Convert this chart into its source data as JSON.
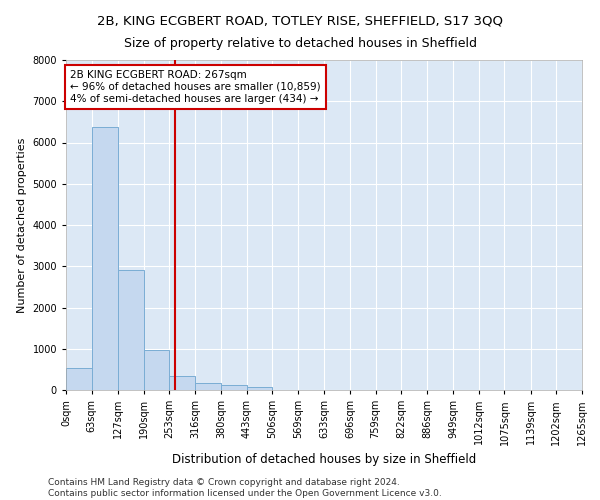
{
  "title1": "2B, KING ECGBERT ROAD, TOTLEY RISE, SHEFFIELD, S17 3QQ",
  "title2": "Size of property relative to detached houses in Sheffield",
  "xlabel": "Distribution of detached houses by size in Sheffield",
  "ylabel": "Number of detached properties",
  "bar_color": "#c5d8ef",
  "bar_edge_color": "#7aadd4",
  "background_color": "#dce8f5",
  "fig_background": "#ffffff",
  "grid_color": "#ffffff",
  "vline_color": "#cc0000",
  "vline_x": 267,
  "annotation_line1": "2B KING ECGBERT ROAD: 267sqm",
  "annotation_line2": "← 96% of detached houses are smaller (10,859)",
  "annotation_line3": "4% of semi-detached houses are larger (434) →",
  "annotation_box_color": "#cc0000",
  "footnote": "Contains HM Land Registry data © Crown copyright and database right 2024.\nContains public sector information licensed under the Open Government Licence v3.0.",
  "bin_edges": [
    0,
    63,
    127,
    190,
    253,
    316,
    380,
    443,
    506,
    569,
    633,
    696,
    759,
    822,
    886,
    949,
    1012,
    1075,
    1139,
    1202,
    1265
  ],
  "bar_heights": [
    540,
    6380,
    2920,
    970,
    330,
    160,
    110,
    70,
    0,
    0,
    0,
    0,
    0,
    0,
    0,
    0,
    0,
    0,
    0,
    0
  ],
  "ylim": [
    0,
    8000
  ],
  "yticks": [
    0,
    1000,
    2000,
    3000,
    4000,
    5000,
    6000,
    7000,
    8000
  ],
  "title1_fontsize": 9.5,
  "title2_fontsize": 9,
  "xlabel_fontsize": 8.5,
  "ylabel_fontsize": 8,
  "tick_fontsize": 7,
  "annotation_fontsize": 7.5,
  "footnote_fontsize": 6.5
}
